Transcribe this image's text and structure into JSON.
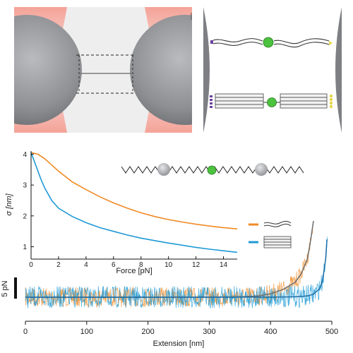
{
  "colors": {
    "orange": "#f08a24",
    "blue": "#1f9ad6",
    "bead_gray": "#8d8f93",
    "laser_red": "#f7b3a8",
    "green_tag": "#4cc23f"
  },
  "scale_bar": {
    "label": "5 pN"
  },
  "chart_data": [
    {
      "type": "line",
      "title": "",
      "xlabel": "Force [pN]",
      "ylabel": "σ [nm]",
      "xlim": [
        0,
        15
      ],
      "ylim": [
        0.6,
        4.1
      ],
      "x_ticks": [
        "0",
        "2",
        "4",
        "6",
        "8",
        "10",
        "12",
        "14"
      ],
      "y_ticks": [
        "1",
        "2",
        "3",
        "4"
      ],
      "series": [
        {
          "color": "orange",
          "x": [
            0,
            0.5,
            1,
            1.5,
            2,
            3,
            4,
            5,
            6,
            7,
            8,
            9,
            10,
            11,
            12,
            13,
            14,
            15
          ],
          "y": [
            4.05,
            4.0,
            3.85,
            3.65,
            3.45,
            3.1,
            2.85,
            2.62,
            2.42,
            2.25,
            2.1,
            1.98,
            1.88,
            1.8,
            1.73,
            1.67,
            1.62,
            1.58
          ]
        },
        {
          "color": "blue",
          "x": [
            0,
            0.25,
            0.5,
            0.75,
            1,
            1.5,
            2,
            3,
            4,
            5,
            6,
            7,
            8,
            9,
            10,
            11,
            12,
            13,
            14,
            15
          ],
          "y": [
            4.05,
            3.75,
            3.45,
            3.15,
            2.9,
            2.5,
            2.25,
            1.98,
            1.78,
            1.62,
            1.5,
            1.38,
            1.28,
            1.2,
            1.12,
            1.05,
            0.98,
            0.92,
            0.87,
            0.82
          ]
        }
      ]
    },
    {
      "type": "line",
      "title": "",
      "xlabel": "Extension [nm]",
      "ylabel": "",
      "xlim": [
        0,
        500
      ],
      "x_ticks": [
        "0",
        "100",
        "200",
        "300",
        "400",
        "500"
      ],
      "series": [
        {
          "color": "orange",
          "x": [
            0,
            100,
            200,
            300,
            350,
            380,
            400,
            420,
            440,
            450,
            460,
            465,
            470
          ],
          "y": [
            0,
            0,
            0,
            0.02,
            0.1,
            0.3,
            0.8,
            1.8,
            3.5,
            5.5,
            9,
            13,
            18
          ]
        },
        {
          "color": "blue",
          "x": [
            0,
            100,
            200,
            300,
            400,
            440,
            460,
            470,
            480,
            485,
            490,
            493
          ],
          "y": [
            0,
            0,
            0,
            0,
            0.02,
            0.1,
            0.3,
            0.7,
            2,
            4,
            9,
            16
          ]
        }
      ]
    }
  ]
}
